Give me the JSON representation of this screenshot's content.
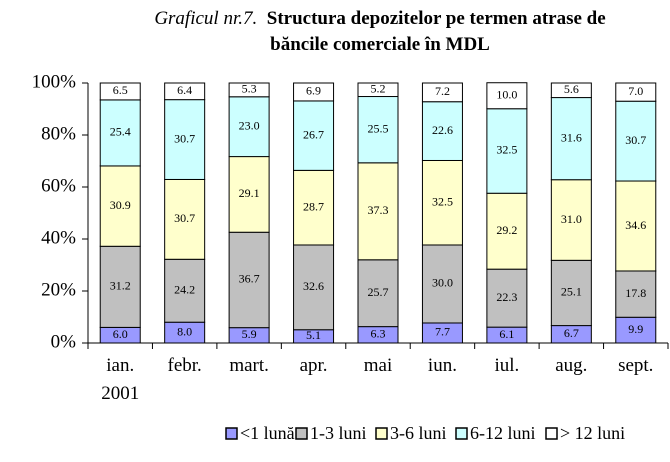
{
  "chart_data": {
    "type": "stacked_bar",
    "title_prefix": "Graficul nr.7.",
    "title": "Structura depozitelor pe termen atrase de băncile comerciale în MDL",
    "categories": [
      "ian. 2001",
      "febr.",
      "mart.",
      "apr.",
      "mai",
      "iun.",
      "iul.",
      "aug.",
      "sept."
    ],
    "series": [
      {
        "name": "<1 lună",
        "color": "#9999ff",
        "values": [
          6.0,
          8.0,
          5.9,
          5.1,
          6.3,
          7.7,
          6.1,
          6.7,
          9.9
        ],
        "value_labels": [
          "6.0",
          "8.0",
          "5.9",
          "5.1",
          "6.3",
          "7.7",
          "6.1",
          "6.7",
          "9.9"
        ]
      },
      {
        "name": "1-3 luni",
        "color": "#c0c0c0",
        "values": [
          31.2,
          24.2,
          36.7,
          32.6,
          25.7,
          30.0,
          22.3,
          25.1,
          17.8
        ],
        "value_labels": [
          "31.2",
          "24.2",
          "36.7",
          "32.6",
          "25.7",
          "30.0",
          "22.3",
          "25.1",
          "17.8"
        ]
      },
      {
        "name": "3-6 luni",
        "color": "#ffffcc",
        "values": [
          30.9,
          30.7,
          29.1,
          28.7,
          37.3,
          32.5,
          29.2,
          31.0,
          34.6
        ],
        "value_labels": [
          "30.9",
          "30.7",
          "29.1",
          "28.7",
          "37.3",
          "32.5",
          "29.2",
          "31.0",
          "34.6"
        ]
      },
      {
        "name": "6-12 luni",
        "color": "#ccffff",
        "values": [
          25.4,
          30.7,
          23.0,
          26.7,
          25.5,
          22.6,
          32.5,
          31.6,
          30.7
        ],
        "value_labels": [
          "25.4",
          "30.7",
          "23.0",
          "26.7",
          "25.5",
          "22.6",
          "32.5",
          "31.6",
          "30.7"
        ]
      },
      {
        "name": "> 12 luni",
        "color": "#ffffff",
        "values": [
          6.5,
          6.4,
          5.3,
          6.9,
          5.2,
          7.2,
          10.0,
          5.6,
          7.0
        ],
        "value_labels": [
          "6.5",
          "6.4",
          "5.3",
          "6.9",
          "5.2",
          "7.2",
          "10.0",
          "5.6",
          "7.0"
        ]
      }
    ],
    "ylim": [
      0,
      100
    ],
    "yticks": [
      {
        "value": 0,
        "label": "0%"
      },
      {
        "value": 20,
        "label": "20%"
      },
      {
        "value": 40,
        "label": "40%"
      },
      {
        "value": 60,
        "label": "60%"
      },
      {
        "value": 80,
        "label": "80%"
      },
      {
        "value": 100,
        "label": "100%"
      }
    ],
    "legend": "bottom"
  }
}
